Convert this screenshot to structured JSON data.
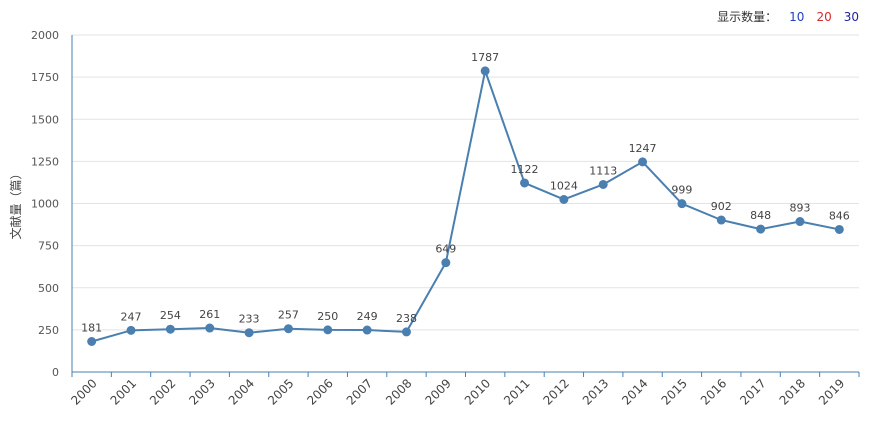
{
  "controls": {
    "display_label": "显示数量：",
    "options": [
      {
        "label": "10",
        "color": "#1f3fbf"
      },
      {
        "label": "20",
        "color": "#d62b2b"
      },
      {
        "label": "30",
        "color": "#1f1f9f"
      }
    ]
  },
  "chart_data": {
    "type": "line",
    "title": "",
    "xlabel": "",
    "ylabel": "文献量（篇）",
    "ylim": [
      0,
      2000
    ],
    "yticks": [
      0,
      250,
      500,
      750,
      1000,
      1250,
      1500,
      1750,
      2000
    ],
    "categories": [
      "2000",
      "2001",
      "2002",
      "2003",
      "2004",
      "2005",
      "2006",
      "2007",
      "2008",
      "2009",
      "2010",
      "2011",
      "2012",
      "2013",
      "2014",
      "2015",
      "2016",
      "2017",
      "2018",
      "2019"
    ],
    "series": [
      {
        "name": "",
        "color": "#4a7fb0",
        "values": [
          181,
          247,
          254,
          261,
          233,
          257,
          250,
          249,
          238,
          649,
          1787,
          1122,
          1024,
          1113,
          1247,
          999,
          902,
          848,
          893,
          846
        ]
      }
    ],
    "grid": true,
    "legend": "none"
  }
}
